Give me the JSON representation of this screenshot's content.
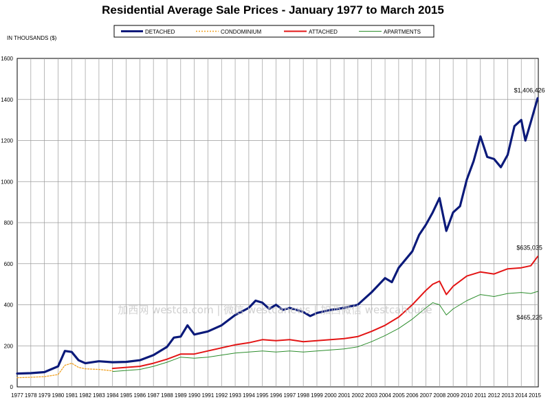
{
  "chart_data": {
    "type": "line",
    "title": "Residential Average Sale Prices  -  January 1977 to March 2015",
    "ylabel": "IN THOUSANDS ($)",
    "xlabel": "",
    "ylim": [
      0,
      1600
    ],
    "yticks": [
      0,
      200,
      400,
      600,
      800,
      1000,
      1200,
      1400,
      1600
    ],
    "xlim": [
      1977,
      2015.25
    ],
    "xticks": [
      "1977",
      "1978",
      "1979",
      "1980",
      "1981",
      "1982",
      "1983",
      "1984",
      "1985",
      "1986",
      "1987",
      "1988",
      "1989",
      "1990",
      "1991",
      "1992",
      "1993",
      "1994",
      "1995",
      "1996",
      "1997",
      "1998",
      "1999",
      "2000",
      "2001",
      "2002",
      "2003",
      "2004",
      "2005",
      "2006",
      "2007",
      "2008",
      "2009",
      "2010",
      "2011",
      "2012",
      "2013",
      "2014",
      "2015"
    ],
    "grid": true,
    "legend_position": "top",
    "series": [
      {
        "name": "DETACHED",
        "color": "#0b1a7a",
        "style": "solid-thick",
        "points": [
          [
            1977,
            65
          ],
          [
            1978,
            67
          ],
          [
            1979,
            72
          ],
          [
            1980,
            100
          ],
          [
            1980.5,
            175
          ],
          [
            1981,
            170
          ],
          [
            1981.5,
            130
          ],
          [
            1982,
            115
          ],
          [
            1983,
            125
          ],
          [
            1984,
            120
          ],
          [
            1985,
            122
          ],
          [
            1986,
            130
          ],
          [
            1987,
            155
          ],
          [
            1988,
            195
          ],
          [
            1988.5,
            240
          ],
          [
            1989,
            245
          ],
          [
            1989.5,
            300
          ],
          [
            1990,
            255
          ],
          [
            1991,
            270
          ],
          [
            1992,
            300
          ],
          [
            1993,
            350
          ],
          [
            1994,
            385
          ],
          [
            1994.5,
            420
          ],
          [
            1995,
            410
          ],
          [
            1995.5,
            380
          ],
          [
            1996,
            400
          ],
          [
            1996.5,
            375
          ],
          [
            1997,
            385
          ],
          [
            1998,
            365
          ],
          [
            1998.5,
            345
          ],
          [
            1999,
            360
          ],
          [
            2000,
            375
          ],
          [
            2001,
            385
          ],
          [
            2002,
            400
          ],
          [
            2002.5,
            430
          ],
          [
            2003,
            460
          ],
          [
            2004,
            530
          ],
          [
            2004.5,
            510
          ],
          [
            2005,
            580
          ],
          [
            2006,
            660
          ],
          [
            2006.5,
            740
          ],
          [
            2007,
            790
          ],
          [
            2007.5,
            850
          ],
          [
            2008,
            920
          ],
          [
            2008.5,
            760
          ],
          [
            2009,
            850
          ],
          [
            2009.5,
            880
          ],
          [
            2010,
            1010
          ],
          [
            2010.5,
            1100
          ],
          [
            2011,
            1220
          ],
          [
            2011.5,
            1120
          ],
          [
            2012,
            1110
          ],
          [
            2012.5,
            1070
          ],
          [
            2013,
            1130
          ],
          [
            2013.5,
            1270
          ],
          [
            2014,
            1300
          ],
          [
            2014.3,
            1200
          ],
          [
            2014.7,
            1290
          ],
          [
            2015.2,
            1406
          ]
        ]
      },
      {
        "name": "CONDOMINIUM",
        "color": "#f0a020",
        "style": "dotted",
        "points": [
          [
            1977,
            45
          ],
          [
            1978,
            47
          ],
          [
            1979,
            50
          ],
          [
            1980,
            60
          ],
          [
            1980.5,
            105
          ],
          [
            1981,
            115
          ],
          [
            1981.5,
            95
          ],
          [
            1982,
            88
          ],
          [
            1983,
            85
          ],
          [
            1984,
            78
          ]
        ]
      },
      {
        "name": "ATTACHED",
        "color": "#e31414",
        "style": "solid",
        "points": [
          [
            1984,
            90
          ],
          [
            1985,
            95
          ],
          [
            1986,
            100
          ],
          [
            1987,
            115
          ],
          [
            1988,
            135
          ],
          [
            1989,
            160
          ],
          [
            1990,
            160
          ],
          [
            1991,
            175
          ],
          [
            1992,
            190
          ],
          [
            1993,
            205
          ],
          [
            1994,
            215
          ],
          [
            1995,
            230
          ],
          [
            1996,
            225
          ],
          [
            1997,
            230
          ],
          [
            1998,
            220
          ],
          [
            1999,
            225
          ],
          [
            2000,
            230
          ],
          [
            2001,
            235
          ],
          [
            2002,
            245
          ],
          [
            2003,
            270
          ],
          [
            2004,
            300
          ],
          [
            2005,
            340
          ],
          [
            2006,
            400
          ],
          [
            2007,
            470
          ],
          [
            2007.5,
            500
          ],
          [
            2008,
            515
          ],
          [
            2008.5,
            450
          ],
          [
            2009,
            490
          ],
          [
            2010,
            540
          ],
          [
            2011,
            560
          ],
          [
            2012,
            550
          ],
          [
            2013,
            575
          ],
          [
            2014,
            580
          ],
          [
            2014.7,
            590
          ],
          [
            2015.2,
            635
          ]
        ]
      },
      {
        "name": "APARTMENTS",
        "color": "#2a8c2a",
        "style": "solid-thin",
        "points": [
          [
            1984,
            75
          ],
          [
            1985,
            80
          ],
          [
            1986,
            85
          ],
          [
            1987,
            100
          ],
          [
            1988,
            120
          ],
          [
            1989,
            145
          ],
          [
            1990,
            140
          ],
          [
            1991,
            145
          ],
          [
            1992,
            155
          ],
          [
            1993,
            165
          ],
          [
            1994,
            170
          ],
          [
            1995,
            175
          ],
          [
            1996,
            170
          ],
          [
            1997,
            175
          ],
          [
            1998,
            170
          ],
          [
            1999,
            175
          ],
          [
            2000,
            180
          ],
          [
            2001,
            185
          ],
          [
            2002,
            195
          ],
          [
            2003,
            220
          ],
          [
            2004,
            250
          ],
          [
            2005,
            285
          ],
          [
            2006,
            330
          ],
          [
            2007,
            385
          ],
          [
            2007.5,
            410
          ],
          [
            2008,
            400
          ],
          [
            2008.5,
            350
          ],
          [
            2009,
            380
          ],
          [
            2010,
            420
          ],
          [
            2011,
            450
          ],
          [
            2012,
            440
          ],
          [
            2013,
            455
          ],
          [
            2014,
            460
          ],
          [
            2014.7,
            455
          ],
          [
            2015.2,
            465
          ]
        ]
      }
    ],
    "annotations": [
      {
        "text": "$1,406,426",
        "x": 2014.6,
        "y": 1435
      },
      {
        "text": "$635,035",
        "x": 2014.6,
        "y": 668
      },
      {
        "text": "$465,225",
        "x": 2014.6,
        "y": 328
      }
    ]
  },
  "watermark": "加西网 westca.com | 微信 westcanews | 加西微信 westcahouse"
}
